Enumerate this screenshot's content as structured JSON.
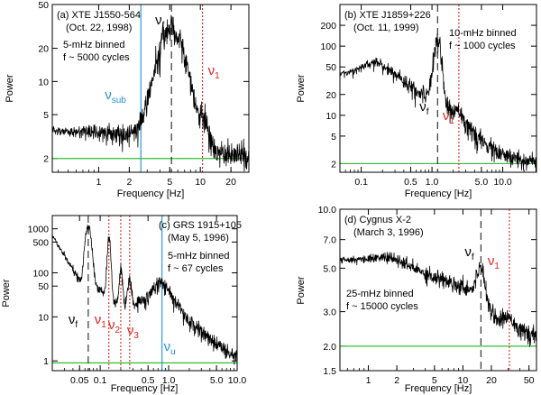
{
  "figure": {
    "description_labels": [
      "(a)",
      "(b)",
      "(c)",
      "(d)"
    ]
  },
  "colors": {
    "data": "#000000",
    "vf": "#000000",
    "red": "#e0201b",
    "blue": "#1f8fd8",
    "green": "#30c030",
    "frame": "#000000"
  },
  "chart_data": [
    {
      "type": "line",
      "id": "a",
      "title": "(a) XTE J1550-564",
      "subtitle": "(Oct. 22, 1998)",
      "annotation": [
        "5-mHz binned",
        "f ~ 5000 cycles"
      ],
      "xlabel": "Frequency [Hz]",
      "ylabel": "Power",
      "xscale": "log",
      "yscale": "log",
      "xlim": [
        0.35,
        30
      ],
      "ylim": [
        1.5,
        50
      ],
      "xticks": [
        1,
        2,
        5,
        10,
        20
      ],
      "xtick_labels": [
        "1",
        "2",
        "5",
        "10",
        "20"
      ],
      "yticks": [
        2,
        5,
        10,
        20,
        50
      ],
      "ytick_labels": [
        "2",
        "5",
        "10",
        "20",
        "50"
      ],
      "baseline": 2.0,
      "vlines": [
        {
          "x": 5.2,
          "style": "dash",
          "color": "vf",
          "label": "ν",
          "sub": "f",
          "label_color": "black"
        },
        {
          "x": 10.5,
          "style": "dot",
          "color": "red",
          "label": "ν",
          "sub": "1",
          "label_color": "red"
        },
        {
          "x": 2.6,
          "style": "solid",
          "color": "blue",
          "label": "ν",
          "sub": "sub",
          "label_color": "blue"
        }
      ],
      "features": [
        {
          "f": 5.2,
          "amp": 28,
          "w": 0.11
        },
        {
          "f": 10.5,
          "amp": 1.9,
          "w": 0.06
        },
        {
          "f": 2.6,
          "amp": 0.35,
          "w": 0.1
        }
      ],
      "continuum": [
        [
          0.35,
          3.6
        ],
        [
          1.0,
          3.4
        ],
        [
          2.0,
          3.1
        ],
        [
          3.0,
          3.7
        ],
        [
          5.0,
          3.6
        ],
        [
          8.0,
          2.8
        ],
        [
          10.0,
          2.4
        ],
        [
          15.0,
          2.2
        ],
        [
          30.0,
          2.1
        ]
      ],
      "noise": 0.14
    },
    {
      "type": "line",
      "id": "b",
      "title": "(b) XTE J1859+226",
      "subtitle": "(Oct. 11, 1999)",
      "annotation": [
        "10-mHz binned",
        "f ~ 1000 cycles"
      ],
      "xlabel": "Frequency [Hz]",
      "ylabel": "Power",
      "xscale": "log",
      "yscale": "log",
      "xlim": [
        0.05,
        30
      ],
      "ylim": [
        1.5,
        400
      ],
      "xticks": [
        0.1,
        0.5,
        1,
        5,
        10
      ],
      "xtick_labels": [
        "0.1",
        "0.5",
        "1.0",
        "5.0",
        "10.0"
      ],
      "yticks": [
        2,
        5,
        10,
        20,
        50,
        100,
        200
      ],
      "ytick_labels": [
        "2",
        "5",
        "10",
        "20",
        "50",
        "100",
        "200"
      ],
      "baseline": 2.0,
      "vlines": [
        {
          "x": 1.2,
          "style": "dash",
          "color": "vf",
          "label": "ν",
          "sub": "f",
          "label_color": "black"
        },
        {
          "x": 2.4,
          "style": "dot",
          "color": "red",
          "label": "ν",
          "sub": "1",
          "label_color": "red"
        }
      ],
      "features": [
        {
          "f": 1.2,
          "amp": 110,
          "w": 0.045
        },
        {
          "f": 2.4,
          "amp": 4,
          "w": 0.05
        }
      ],
      "continuum": [
        [
          0.05,
          40
        ],
        [
          0.08,
          43
        ],
        [
          0.12,
          55
        ],
        [
          0.17,
          58
        ],
        [
          0.25,
          45
        ],
        [
          0.4,
          32
        ],
        [
          0.6,
          22
        ],
        [
          0.8,
          20
        ],
        [
          1.0,
          22
        ],
        [
          1.5,
          14
        ],
        [
          2.0,
          10
        ],
        [
          3.0,
          7
        ],
        [
          5.0,
          4.2
        ],
        [
          10.0,
          2.6
        ],
        [
          30.0,
          2.1
        ]
      ],
      "noise": 0.16
    },
    {
      "type": "line",
      "id": "c",
      "title": "(c) GRS 1915+105",
      "subtitle": "(May 5, 1996)",
      "annotation": [
        "5-mHz binned",
        "f ~ 67 cycles"
      ],
      "xlabel": "Frequency [Hz]",
      "ylabel": "Power",
      "xscale": "log",
      "yscale": "log",
      "xlim": [
        0.02,
        10
      ],
      "ylim": [
        0.6,
        2000
      ],
      "xticks": [
        0.05,
        0.1,
        0.5,
        1,
        5,
        10
      ],
      "xtick_labels": [
        "0.05",
        "0.1",
        "0.5",
        "1.0",
        "5.0",
        "10.0"
      ],
      "yticks": [
        1,
        10,
        50,
        100,
        500,
        1000
      ],
      "ytick_labels": [
        "1",
        "10",
        "50",
        "100",
        "500",
        "1000"
      ],
      "baseline": 0.9,
      "vlines": [
        {
          "x": 0.067,
          "style": "dash",
          "color": "vf",
          "label": "ν",
          "sub": "f",
          "label_color": "black"
        },
        {
          "x": 0.134,
          "style": "dot",
          "color": "red",
          "label": "ν",
          "sub": "1",
          "label_color": "red"
        },
        {
          "x": 0.2,
          "style": "dot",
          "color": "red",
          "label": "ν",
          "sub": "2",
          "label_color": "red"
        },
        {
          "x": 0.27,
          "style": "dot",
          "color": "red",
          "label": "ν",
          "sub": "3",
          "label_color": "red"
        },
        {
          "x": 0.8,
          "style": "solid",
          "color": "blue",
          "label": "ν",
          "sub": "u",
          "label_color": "blue"
        }
      ],
      "features": [
        {
          "f": 0.067,
          "amp": 1000,
          "w": 0.035
        },
        {
          "f": 0.134,
          "amp": 560,
          "w": 0.02
        },
        {
          "f": 0.2,
          "amp": 110,
          "w": 0.018
        },
        {
          "f": 0.27,
          "amp": 55,
          "w": 0.02
        }
      ],
      "continuum": [
        [
          0.02,
          700
        ],
        [
          0.03,
          250
        ],
        [
          0.045,
          90
        ],
        [
          0.055,
          60
        ],
        [
          0.06,
          100
        ],
        [
          0.08,
          60
        ],
        [
          0.1,
          40
        ],
        [
          0.15,
          25
        ],
        [
          0.2,
          20
        ],
        [
          0.3,
          18
        ],
        [
          0.5,
          30
        ],
        [
          0.7,
          60
        ],
        [
          0.85,
          55
        ],
        [
          1.2,
          25
        ],
        [
          2.0,
          8
        ],
        [
          4.0,
          3
        ],
        [
          8.0,
          1.5
        ],
        [
          10.0,
          1.3
        ]
      ],
      "noise": 0.2
    },
    {
      "type": "line",
      "id": "d",
      "title": "(d) Cygnus X-2",
      "subtitle": "(March 3, 1996)",
      "annotation": [
        "25-mHz binned",
        "f ~ 15000 cycles"
      ],
      "xlabel": "Frequency [Hz]",
      "ylabel": "Power",
      "xscale": "log",
      "yscale": "log",
      "xlim": [
        0.5,
        60
      ],
      "ylim": [
        1.5,
        10
      ],
      "xticks": [
        1,
        2,
        5,
        10,
        20,
        50
      ],
      "xtick_labels": [
        "1",
        "2",
        "5",
        "10",
        "20",
        "50"
      ],
      "yticks": [
        1.5,
        2,
        3,
        5,
        7,
        10
      ],
      "ytick_labels": [
        "1.5",
        "2.0",
        "3.0",
        "5.0",
        "7.0",
        "10.0"
      ],
      "baseline": 2.0,
      "vlines": [
        {
          "x": 15.5,
          "style": "dash",
          "color": "vf",
          "label": "ν",
          "sub": "f",
          "label_color": "black"
        },
        {
          "x": 31,
          "style": "dot",
          "color": "red",
          "label": "ν",
          "sub": "1",
          "label_color": "red"
        }
      ],
      "features": [
        {
          "f": 15.5,
          "amp": 1.6,
          "w": 0.04
        },
        {
          "f": 31,
          "amp": 0.35,
          "w": 0.06
        }
      ],
      "continuum": [
        [
          0.5,
          5.5
        ],
        [
          1.0,
          5.6
        ],
        [
          1.5,
          5.7
        ],
        [
          2.0,
          5.5
        ],
        [
          3.0,
          5.0
        ],
        [
          5.0,
          4.5
        ],
        [
          8.0,
          4.2
        ],
        [
          12.0,
          3.9
        ],
        [
          15.0,
          3.6
        ],
        [
          20.0,
          3.0
        ],
        [
          25.0,
          2.6
        ],
        [
          35.0,
          2.4
        ],
        [
          50.0,
          2.3
        ],
        [
          60.0,
          2.2
        ]
      ],
      "noise": 0.05
    }
  ]
}
